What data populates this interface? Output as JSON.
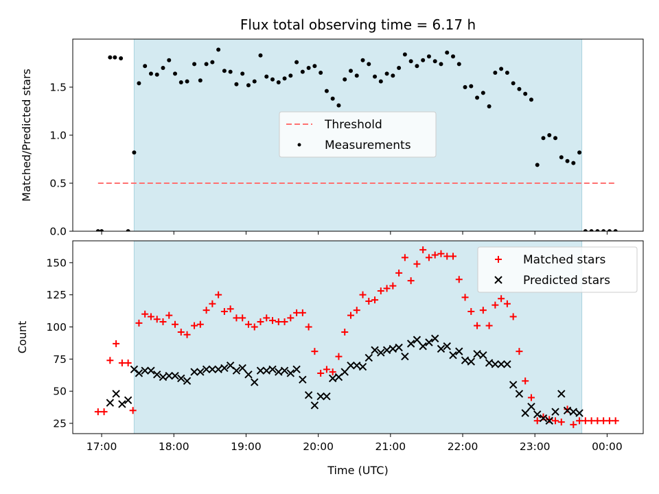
{
  "chart_data": [
    {
      "type": "scatter",
      "title": "Flux total observing time = 6.17 h",
      "ylabel": "Matched/Predicted stars",
      "xlim": [
        "16:36",
        "00:30"
      ],
      "ylim": [
        0,
        2.0
      ],
      "y_ticks": [
        0.0,
        0.5,
        1.0,
        1.5
      ],
      "y_tick_labels": [
        "0.0",
        "0.5",
        "1.0",
        "1.5"
      ],
      "shaded_span": [
        "17:27",
        "23:39"
      ],
      "shade_color": "#d4eaf1",
      "legend_position": "center",
      "legend": [
        {
          "label": "Threshold",
          "key": "threshold"
        },
        {
          "label": "Measurements",
          "key": "measurements"
        }
      ],
      "threshold": {
        "name": "Threshold",
        "value": 0.5,
        "x_start": "16:57",
        "x_end": "00:08",
        "color": "#ff7070"
      },
      "series": [
        {
          "name": "Measurements",
          "color": "#000000",
          "x": [
            "16:57",
            "17:00",
            "17:07",
            "17:11",
            "17:16",
            "17:22",
            "17:27",
            "17:31",
            "17:36",
            "17:41",
            "17:46",
            "17:51",
            "17:56",
            "18:01",
            "18:06",
            "18:11",
            "18:17",
            "18:22",
            "18:27",
            "18:32",
            "18:37",
            "18:42",
            "18:47",
            "18:52",
            "18:57",
            "19:02",
            "19:07",
            "19:12",
            "19:17",
            "19:22",
            "19:27",
            "19:32",
            "19:37",
            "19:42",
            "19:47",
            "19:52",
            "19:57",
            "20:02",
            "20:07",
            "20:12",
            "20:17",
            "20:22",
            "20:27",
            "20:32",
            "20:37",
            "20:42",
            "20:47",
            "20:52",
            "20:57",
            "21:02",
            "21:07",
            "21:12",
            "21:17",
            "21:22",
            "21:27",
            "21:32",
            "21:37",
            "21:42",
            "21:47",
            "21:52",
            "21:57",
            "22:02",
            "22:07",
            "22:12",
            "22:17",
            "22:22",
            "22:27",
            "22:32",
            "22:37",
            "22:42",
            "22:47",
            "22:52",
            "22:57",
            "23:02",
            "23:07",
            "23:12",
            "23:17",
            "23:22",
            "23:27",
            "23:32",
            "23:37",
            "23:42",
            "23:47",
            "23:52",
            "23:57",
            "24:02",
            "24:07"
          ],
          "y": [
            0.0,
            0.0,
            1.81,
            1.81,
            1.8,
            0.0,
            0.82,
            1.54,
            1.72,
            1.64,
            1.63,
            1.7,
            1.78,
            1.64,
            1.55,
            1.56,
            1.74,
            1.57,
            1.74,
            1.76,
            1.89,
            1.67,
            1.66,
            1.53,
            1.64,
            1.52,
            1.56,
            1.83,
            1.61,
            1.58,
            1.55,
            1.59,
            1.62,
            1.76,
            1.66,
            1.7,
            1.72,
            1.65,
            1.46,
            1.38,
            1.31,
            1.58,
            1.67,
            1.62,
            1.78,
            1.74,
            1.61,
            1.56,
            1.64,
            1.62,
            1.7,
            1.84,
            1.77,
            1.72,
            1.78,
            1.82,
            1.77,
            1.74,
            1.86,
            1.82,
            1.74,
            1.5,
            1.51,
            1.39,
            1.44,
            1.3,
            1.65,
            1.69,
            1.65,
            1.54,
            1.48,
            1.43,
            1.37,
            0.69,
            0.97,
            1.0,
            0.97,
            0.77,
            0.73,
            0.71,
            0.82,
            0.0,
            0.0,
            0.0,
            0.0,
            0.0,
            0.0
          ]
        }
      ]
    },
    {
      "type": "scatter",
      "xlabel": "Time (UTC)",
      "ylabel": "Count",
      "xlim": [
        "16:36",
        "00:30"
      ],
      "ylim": [
        17,
        167
      ],
      "x_ticks": [
        "17:00",
        "18:00",
        "19:00",
        "20:00",
        "21:00",
        "22:00",
        "23:00",
        "00:00"
      ],
      "y_ticks": [
        25,
        50,
        75,
        100,
        125,
        150
      ],
      "y_tick_labels": [
        "25",
        "50",
        "75",
        "100",
        "125",
        "150"
      ],
      "shaded_span": [
        "17:27",
        "23:39"
      ],
      "shade_color": "#d4eaf1",
      "legend_position": "top-right",
      "legend": [
        {
          "label": "Matched stars",
          "key": "matched"
        },
        {
          "label": "Predicted stars",
          "key": "predicted"
        }
      ],
      "series": [
        {
          "name": "Matched stars",
          "marker": "plus",
          "color": "#ff0000",
          "x": [
            "16:57",
            "17:02",
            "17:07",
            "17:12",
            "17:17",
            "17:22",
            "17:26",
            "17:31",
            "17:36",
            "17:41",
            "17:46",
            "17:51",
            "17:56",
            "18:01",
            "18:06",
            "18:11",
            "18:17",
            "18:22",
            "18:27",
            "18:32",
            "18:37",
            "18:42",
            "18:47",
            "18:52",
            "18:57",
            "19:02",
            "19:07",
            "19:12",
            "19:17",
            "19:22",
            "19:27",
            "19:32",
            "19:37",
            "19:42",
            "19:47",
            "19:52",
            "19:57",
            "20:02",
            "20:07",
            "20:12",
            "20:17",
            "20:22",
            "20:27",
            "20:32",
            "20:37",
            "20:42",
            "20:47",
            "20:52",
            "20:57",
            "21:02",
            "21:07",
            "21:12",
            "21:17",
            "21:22",
            "21:27",
            "21:32",
            "21:37",
            "21:42",
            "21:47",
            "21:52",
            "21:57",
            "22:02",
            "22:07",
            "22:12",
            "22:17",
            "22:22",
            "22:27",
            "22:32",
            "22:37",
            "22:42",
            "22:47",
            "22:52",
            "22:57",
            "23:02",
            "23:07",
            "23:12",
            "23:17",
            "23:22",
            "23:27",
            "23:32",
            "23:37",
            "23:42",
            "23:47",
            "23:52",
            "23:57",
            "24:02",
            "24:07"
          ],
          "y": [
            34,
            34,
            74,
            87,
            72,
            72,
            35,
            103,
            110,
            108,
            106,
            104,
            109,
            102,
            96,
            94,
            101,
            102,
            113,
            118,
            125,
            112,
            114,
            107,
            107,
            102,
            100,
            104,
            107,
            105,
            104,
            104,
            107,
            111,
            111,
            100,
            81,
            64,
            67,
            65,
            77,
            96,
            109,
            113,
            125,
            120,
            121,
            128,
            130,
            132,
            142,
            154,
            136,
            149,
            160,
            154,
            156,
            157,
            155,
            155,
            137,
            123,
            112,
            101,
            113,
            101,
            117,
            122,
            118,
            108,
            81,
            58,
            45,
            27,
            30,
            28,
            27,
            26,
            36,
            24,
            27,
            27,
            27,
            27,
            27,
            27,
            27
          ]
        },
        {
          "name": "Predicted stars",
          "marker": "x",
          "color": "#000000",
          "x": [
            "17:07",
            "17:12",
            "17:17",
            "17:22",
            "17:27",
            "17:31",
            "17:36",
            "17:41",
            "17:46",
            "17:51",
            "17:56",
            "18:01",
            "18:06",
            "18:11",
            "18:17",
            "18:22",
            "18:27",
            "18:32",
            "18:37",
            "18:42",
            "18:47",
            "18:52",
            "18:57",
            "19:02",
            "19:07",
            "19:12",
            "19:17",
            "19:22",
            "19:27",
            "19:32",
            "19:37",
            "19:42",
            "19:47",
            "19:52",
            "19:57",
            "20:02",
            "20:07",
            "20:12",
            "20:17",
            "20:22",
            "20:27",
            "20:32",
            "20:37",
            "20:42",
            "20:47",
            "20:52",
            "20:57",
            "21:02",
            "21:07",
            "21:12",
            "21:17",
            "21:22",
            "21:27",
            "21:32",
            "21:37",
            "21:42",
            "21:47",
            "21:52",
            "21:57",
            "22:02",
            "22:07",
            "22:12",
            "22:17",
            "22:22",
            "22:27",
            "22:32",
            "22:37",
            "22:42",
            "22:47",
            "22:52",
            "22:57",
            "23:02",
            "23:07",
            "23:12",
            "23:17",
            "23:22",
            "23:27",
            "23:32",
            "23:37"
          ],
          "y": [
            41,
            48,
            40,
            43,
            67,
            64,
            66,
            66,
            63,
            61,
            62,
            62,
            60,
            58,
            65,
            65,
            67,
            67,
            67,
            68,
            70,
            66,
            68,
            63,
            57,
            66,
            66,
            67,
            65,
            66,
            64,
            67,
            59,
            47,
            39,
            46,
            46,
            60,
            61,
            65,
            70,
            70,
            69,
            76,
            82,
            80,
            82,
            83,
            84,
            77,
            87,
            90,
            85,
            88,
            91,
            83,
            85,
            78,
            81,
            74,
            73,
            79,
            78,
            72,
            71,
            71,
            71,
            55,
            48,
            33,
            38,
            32,
            29,
            27,
            34,
            48,
            35,
            34,
            33
          ]
        }
      ]
    }
  ]
}
